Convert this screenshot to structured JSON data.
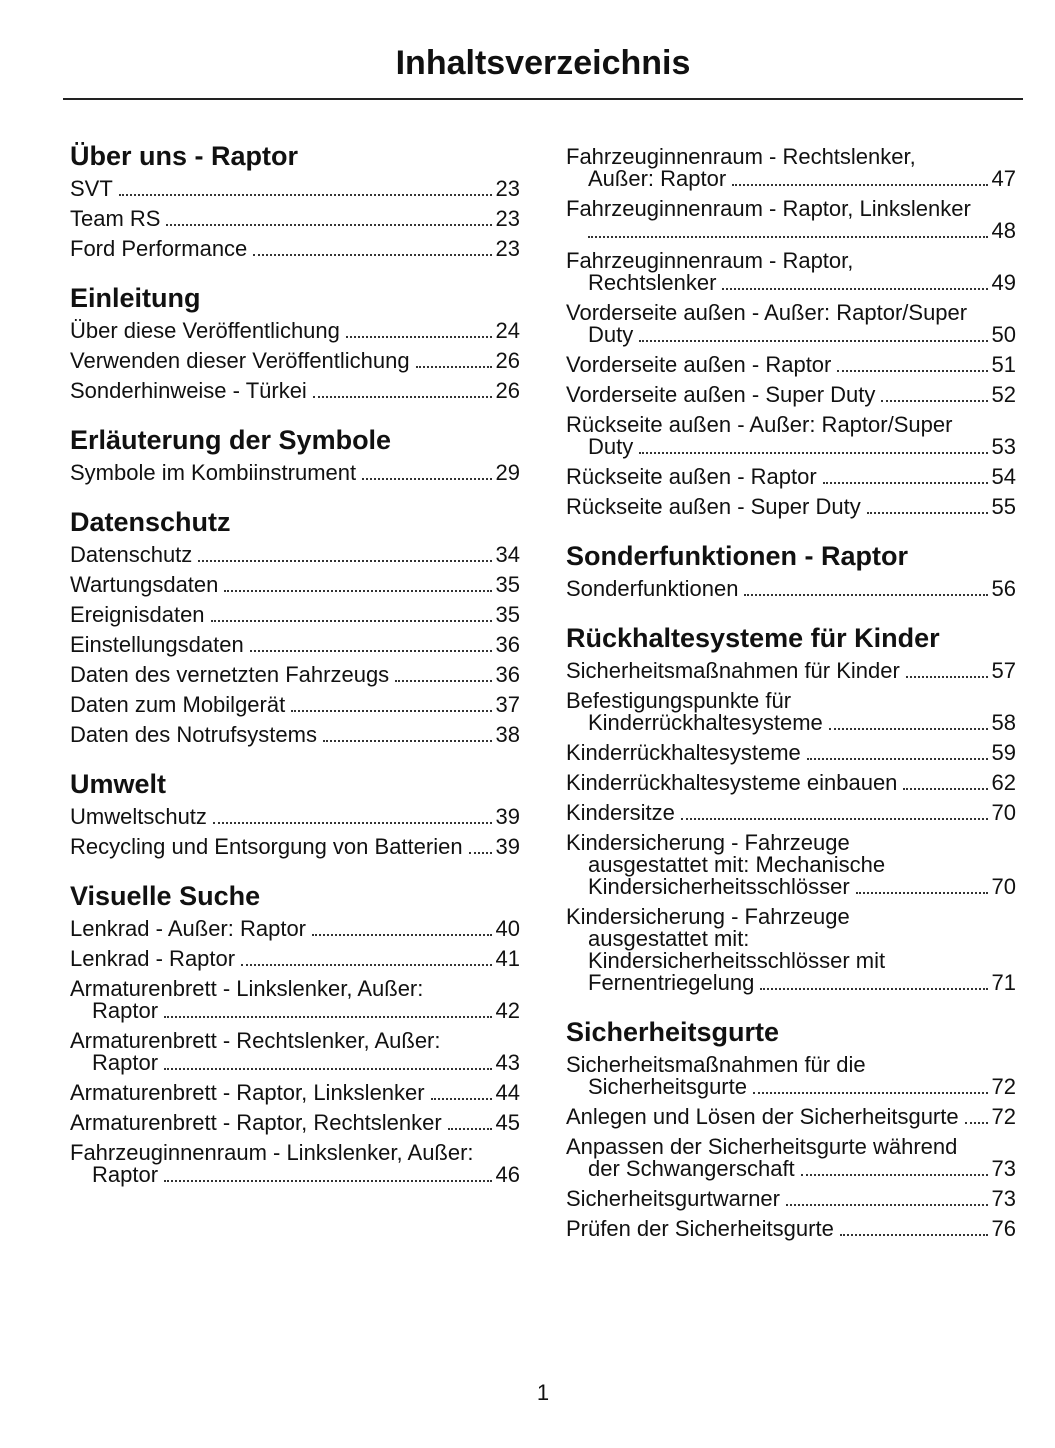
{
  "header": {
    "title": "Inhaltsverzeichnis"
  },
  "columns": [
    {
      "sections": [
        {
          "heading": "Über uns - Raptor",
          "entries": [
            {
              "text": "SVT",
              "page": 23
            },
            {
              "text": "Team RS",
              "page": 23
            },
            {
              "text": "Ford Performance",
              "page": 23
            }
          ]
        },
        {
          "heading": "Einleitung",
          "entries": [
            {
              "text": "Über diese Veröffentlichung",
              "page": 24
            },
            {
              "text": "Verwenden dieser Veröffentlichung",
              "page": 26
            },
            {
              "text": "Sonderhinweise - Türkei",
              "page": 26
            }
          ]
        },
        {
          "heading": "Erläuterung der Symbole",
          "entries": [
            {
              "text": "Symbole im Kombiinstrument",
              "page": 29
            }
          ]
        },
        {
          "heading": "Datenschutz",
          "entries": [
            {
              "text": "Datenschutz",
              "page": 34
            },
            {
              "text": "Wartungsdaten",
              "page": 35
            },
            {
              "text": "Ereignisdaten",
              "page": 35
            },
            {
              "text": "Einstellungsdaten",
              "page": 36
            },
            {
              "text": "Daten des vernetzten Fahrzeugs",
              "page": 36
            },
            {
              "text": "Daten zum Mobilgerät",
              "page": 37
            },
            {
              "text": "Daten des Notrufsystems",
              "page": 38
            }
          ]
        },
        {
          "heading": "Umwelt",
          "entries": [
            {
              "text": "Umweltschutz",
              "page": 39
            },
            {
              "text": "Recycling und Entsorgung von Batterien",
              "page": 39
            }
          ]
        },
        {
          "heading": "Visuelle Suche",
          "entries": [
            {
              "text": "Lenkrad - Außer: Raptor",
              "page": 40
            },
            {
              "text": "Lenkrad - Raptor",
              "page": 41
            },
            {
              "text": "Armaturenbrett - Linkslenker, Außer: Raptor",
              "page": 42
            },
            {
              "text": "Armaturenbrett - Rechtslenker, Außer: Raptor",
              "page": 43
            },
            {
              "text": "Armaturenbrett - Raptor, Linkslenker",
              "page": 44
            },
            {
              "text": "Armaturenbrett - Raptor, Rechtslenker",
              "page": 45
            },
            {
              "text": "Fahrzeuginnenraum - Linkslenker, Außer: Raptor",
              "page": 46
            }
          ]
        }
      ]
    },
    {
      "sections": [
        {
          "entries": [
            {
              "text": "Fahrzeuginnenraum - Rechtslenker, Außer: Raptor",
              "page": 47
            },
            {
              "text": "Fahrzeuginnenraum - Raptor, Linkslenker",
              "page": 48
            },
            {
              "text": "Fahrzeuginnenraum - Raptor, Rechtslenker",
              "page": 49
            },
            {
              "text": "Vorderseite außen - Außer: Raptor/Super Duty",
              "page": 50
            },
            {
              "text": "Vorderseite außen - Raptor",
              "page": 51
            },
            {
              "text": "Vorderseite außen - Super Duty",
              "page": 52
            },
            {
              "text": "Rückseite außen - Außer: Raptor/Super Duty",
              "page": 53
            },
            {
              "text": "Rückseite außen - Raptor",
              "page": 54
            },
            {
              "text": "Rückseite außen - Super Duty",
              "page": 55
            }
          ]
        },
        {
          "heading": "Sonderfunktionen - Raptor",
          "entries": [
            {
              "text": "Sonderfunktionen",
              "page": 56
            }
          ]
        },
        {
          "heading": "Rückhaltesysteme für Kinder",
          "entries": [
            {
              "text": "Sicherheitsmaßnahmen für Kinder",
              "page": 57
            },
            {
              "text": "Befestigungspunkte für Kinderrückhaltesysteme",
              "page": 58
            },
            {
              "text": "Kinderrückhaltesysteme",
              "page": 59
            },
            {
              "text": "Kinderrückhaltesysteme einbauen",
              "page": 62
            },
            {
              "text": "Kindersitze",
              "page": 70
            },
            {
              "text": "Kindersicherung - Fahrzeuge ausgestattet mit: Mechanische Kindersicherheitsschlösser",
              "page": 70
            },
            {
              "text": "Kindersicherung - Fahrzeuge ausgestattet mit: Kindersicherheitsschlösser mit Fernentriegelung",
              "page": 71
            }
          ]
        },
        {
          "heading": "Sicherheitsgurte",
          "entries": [
            {
              "text": "Sicherheitsmaßnahmen für die Sicherheitsgurte",
              "page": 72
            },
            {
              "text": "Anlegen und Lösen der Sicherheitsgurte",
              "page": 72
            },
            {
              "text": "Anpassen der Sicherheitsgurte während der Schwangerschaft",
              "page": 73
            },
            {
              "text": "Sicherheitsgurtwarner",
              "page": 73
            },
            {
              "text": "Prüfen der Sicherheitsgurte",
              "page": 76
            }
          ]
        }
      ]
    }
  ],
  "footer": {
    "page_number": 1
  }
}
